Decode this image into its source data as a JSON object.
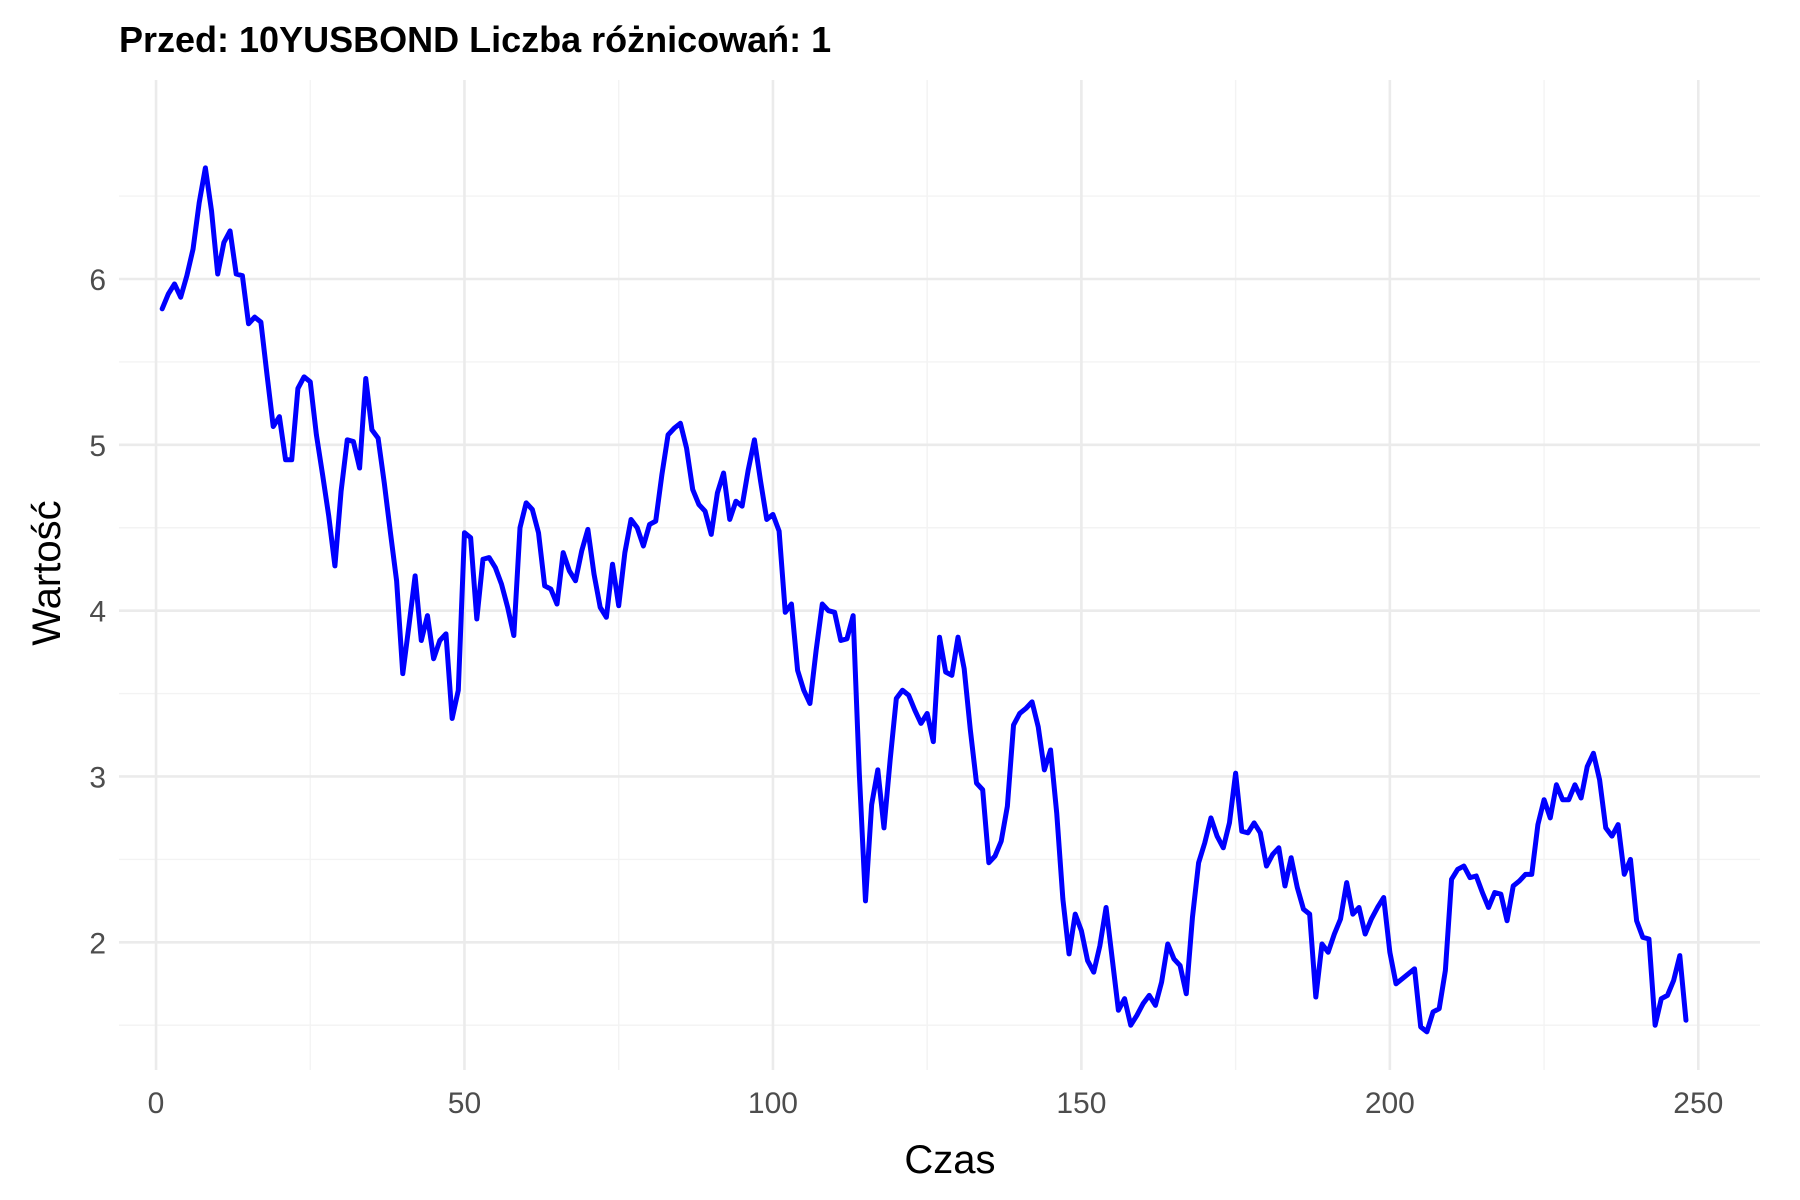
{
  "chart_data": {
    "type": "line",
    "title": "Przed: 10YUSBOND Liczba różnicowań:  1",
    "xlabel": "Czas",
    "ylabel": "Wartość",
    "xlim": [
      -6,
      260
    ],
    "ylim": [
      1.23,
      7.2
    ],
    "grid": true,
    "legend": "none",
    "x_ticks": [
      0,
      50,
      100,
      150,
      200,
      250
    ],
    "x_tick_labels": [
      "0",
      "50",
      "100",
      "150",
      "200",
      "250"
    ],
    "x_minor_ticks": [
      25,
      75,
      125,
      175,
      225
    ],
    "y_ticks": [
      2,
      3,
      4,
      5,
      6
    ],
    "y_tick_labels": [
      "2",
      "3",
      "4",
      "5",
      "6"
    ],
    "y_minor_ticks": [
      1.5,
      2.5,
      3.5,
      4.5,
      5.5,
      6.5
    ],
    "colors": {
      "line": "#0000ff"
    },
    "series": [
      {
        "x_start": 1,
        "values": [
          5.82,
          5.91,
          5.97,
          5.89,
          6.02,
          6.18,
          6.46,
          6.67,
          6.41,
          6.03,
          6.22,
          6.29,
          6.03,
          6.02,
          5.73,
          5.77,
          5.74,
          5.42,
          5.11,
          5.17,
          4.91,
          4.91,
          5.34,
          5.41,
          5.38,
          5.06,
          4.82,
          4.57,
          4.27,
          4.72,
          5.03,
          5.02,
          4.86,
          5.4,
          5.09,
          5.04,
          4.77,
          4.47,
          4.18,
          3.62,
          3.91,
          4.21,
          3.82,
          3.97,
          3.71,
          3.82,
          3.86,
          3.35,
          3.52,
          4.47,
          4.44,
          3.95,
          4.31,
          4.32,
          4.26,
          4.16,
          4.02,
          3.85,
          4.5,
          4.65,
          4.61,
          4.47,
          4.15,
          4.13,
          4.04,
          4.35,
          4.24,
          4.18,
          4.36,
          4.49,
          4.22,
          4.02,
          3.96,
          4.28,
          4.03,
          4.35,
          4.55,
          4.5,
          4.39,
          4.52,
          4.54,
          4.82,
          5.06,
          5.1,
          5.13,
          4.98,
          4.73,
          4.64,
          4.6,
          4.46,
          4.71,
          4.83,
          4.55,
          4.66,
          4.63,
          4.85,
          5.03,
          4.78,
          4.55,
          4.58,
          4.48,
          3.99,
          4.04,
          3.64,
          3.52,
          3.44,
          3.76,
          4.04,
          4.0,
          3.99,
          3.82,
          3.83,
          3.97,
          3.02,
          2.25,
          2.83,
          3.04,
          2.69,
          3.1,
          3.47,
          3.52,
          3.49,
          3.4,
          3.32,
          3.38,
          3.21,
          3.84,
          3.63,
          3.61,
          3.84,
          3.65,
          3.28,
          2.96,
          2.92,
          2.48,
          2.52,
          2.61,
          2.82,
          3.31,
          3.38,
          3.41,
          3.45,
          3.3,
          3.04,
          3.16,
          2.78,
          2.26,
          1.93,
          2.17,
          2.07,
          1.89,
          1.82,
          1.98,
          2.21,
          1.9,
          1.59,
          1.66,
          1.5,
          1.56,
          1.63,
          1.68,
          1.62,
          1.76,
          1.99,
          1.9,
          1.86,
          1.69,
          2.15,
          2.48,
          2.6,
          2.75,
          2.64,
          2.57,
          2.72,
          3.02,
          2.67,
          2.66,
          2.72,
          2.66,
          2.46,
          2.53,
          2.57,
          2.34,
          2.51,
          2.33,
          2.2,
          2.17,
          1.67,
          1.99,
          1.94,
          2.05,
          2.14,
          2.36,
          2.17,
          2.21,
          2.05,
          2.14,
          2.21,
          2.27,
          1.94,
          1.75,
          1.78,
          1.81,
          1.84,
          1.49,
          1.46,
          1.58,
          1.6,
          1.83,
          2.38,
          2.44,
          2.46,
          2.39,
          2.4,
          2.3,
          2.21,
          2.3,
          2.29,
          2.13,
          2.34,
          2.37,
          2.41,
          2.41,
          2.71,
          2.86,
          2.75,
          2.95,
          2.86,
          2.86,
          2.95,
          2.87,
          3.06,
          3.14,
          2.98,
          2.69,
          2.64,
          2.71,
          2.41,
          2.5,
          2.13,
          2.03,
          2.02,
          1.5,
          1.66,
          1.68,
          1.77,
          1.92,
          1.53
        ]
      }
    ]
  }
}
